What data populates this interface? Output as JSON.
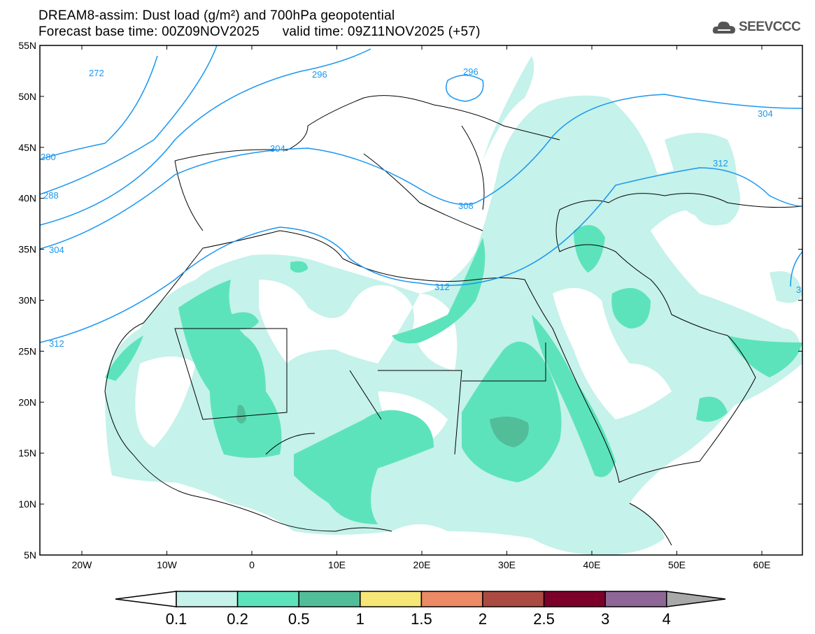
{
  "header": {
    "title": "DREAM8-assim: Dust load (g/m²) and 700hPa geopotential",
    "forecast_base": "Forecast base time: 00Z09NOV2025",
    "valid_time": "valid time: 09Z11NOV2025 (+57)",
    "logo_text": "SEEVCCC"
  },
  "axes": {
    "lat_labels": [
      "55N",
      "50N",
      "45N",
      "40N",
      "35N",
      "30N",
      "25N",
      "20N",
      "15N",
      "10N",
      "5N"
    ],
    "lon_labels": [
      "20W",
      "10W",
      "0",
      "10E",
      "20E",
      "30E",
      "40E",
      "50E",
      "60E"
    ],
    "lon_range": [
      -25,
      65
    ],
    "lat_range": [
      5,
      55
    ]
  },
  "contour_labels": [
    "272",
    "280",
    "288",
    "296",
    "296",
    "304",
    "304",
    "304",
    "308",
    "312",
    "312",
    "312",
    "312",
    "3"
  ],
  "colorbar": {
    "ticks": [
      "0.1",
      "0.2",
      "0.5",
      "1",
      "1.5",
      "2",
      "2.5",
      "3",
      "4"
    ],
    "colors": [
      "#ffffff",
      "#c5f2ea",
      "#5de3bb",
      "#52bd99",
      "#f6e678",
      "#ec8a65",
      "#ab4a41",
      "#7c002a",
      "#8e6797",
      "#a9a9a9"
    ]
  },
  "colors": {
    "contour": "#1a96f0",
    "dust_low": "#c5f2ea",
    "dust_mid": "#5de3bb",
    "dust_high": "#52bd99"
  }
}
